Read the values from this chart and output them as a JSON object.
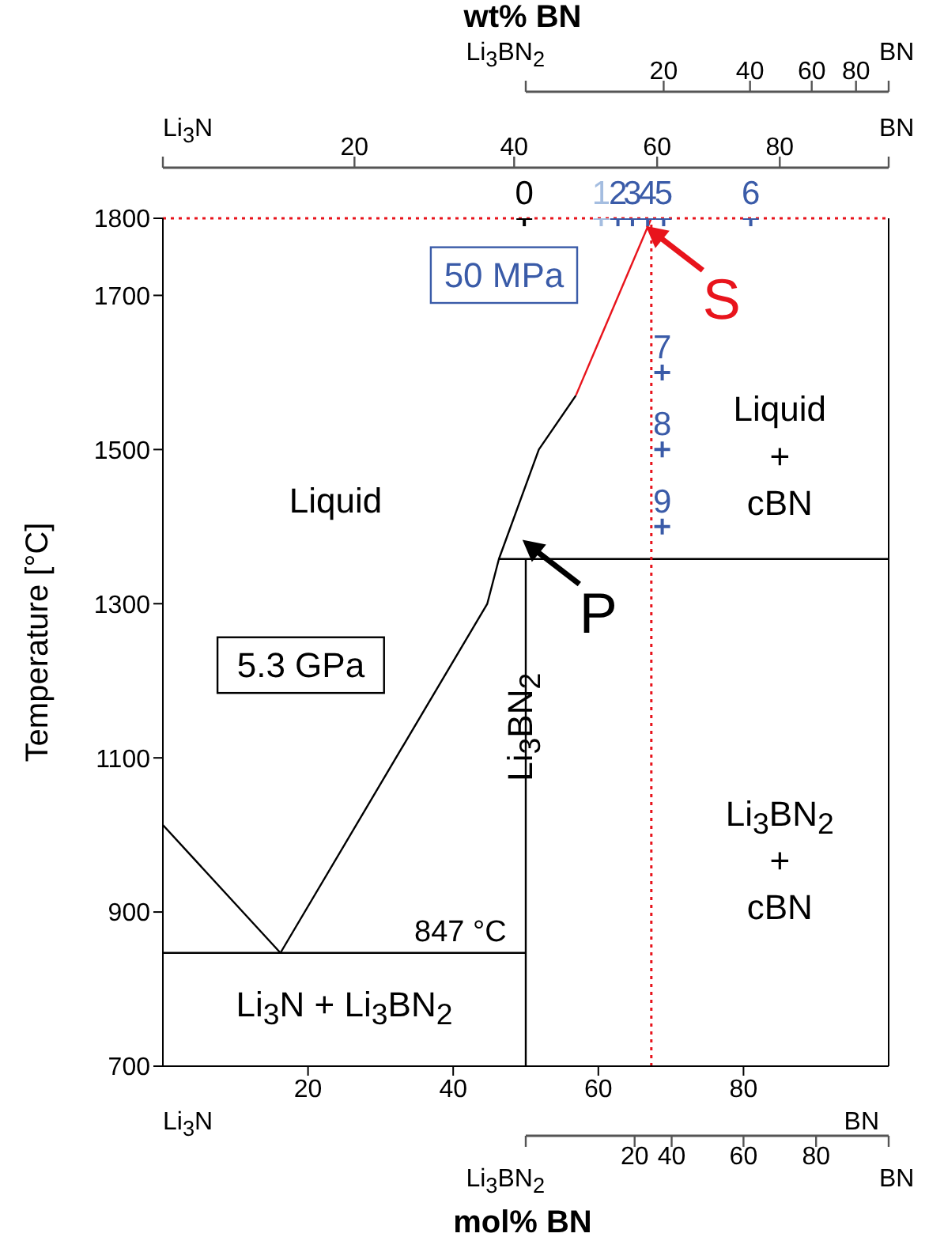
{
  "chart_data": {
    "type": "line",
    "xlabel": "mol% BN",
    "x2label": "wt% BN",
    "ylabel": "Temperature [°C]",
    "xlim": [
      0,
      100
    ],
    "xticks": [
      20,
      40,
      60,
      80
    ],
    "ylim": [
      700,
      1800
    ],
    "yticks": [
      700,
      900,
      1100,
      1300,
      1500,
      1700,
      1800
    ],
    "series": [
      {
        "type": "line",
        "color": "#000000",
        "x": [
          0,
          16.2
        ],
        "values": [
          1013,
          847
        ]
      },
      {
        "type": "line",
        "color": "#000000",
        "x": [
          16.2,
          44.7,
          46.3,
          51.8,
          56.9
        ],
        "values": [
          847,
          1300,
          1358,
          1500,
          1570
        ]
      },
      {
        "type": "line",
        "color": "#e8141c",
        "x": [
          56.9,
          67.3
        ],
        "values": [
          1570,
          1800
        ]
      },
      {
        "type": "line",
        "color": "#000000",
        "x": [
          0,
          50
        ],
        "values": [
          847,
          847
        ]
      },
      {
        "type": "line",
        "color": "#000000",
        "x": [
          50,
          50
        ],
        "values": [
          700,
          1358
        ]
      },
      {
        "type": "line",
        "color": "#000000",
        "x": [
          46.3,
          100
        ],
        "values": [
          1358,
          1358
        ]
      },
      {
        "type": "scatter",
        "marker": "cross",
        "x": [
          49.8,
          60.4,
          62.7,
          64.7,
          66.8,
          69,
          81,
          68.8,
          68.8,
          68.8
        ],
        "values": [
          1800,
          1800,
          1800,
          1800,
          1800,
          1800,
          1800,
          1600,
          1500,
          1400
        ],
        "colors": [
          "#000000",
          "#a4bde0",
          "#3a5ba8",
          "#3a5ba8",
          "#3a5ba8",
          "#3a5ba8",
          "#3a5ba8",
          "#3a5ba8",
          "#3a5ba8",
          "#3a5ba8"
        ]
      }
    ],
    "ref_lines": [
      {
        "axis": "x",
        "value": 67.3,
        "color": "#e8141c",
        "line_style": "dotted"
      },
      {
        "axis": "y",
        "value": 1800,
        "color": "#e8141c",
        "line_style": "dotted"
      }
    ],
    "annotations": [
      "Liquid",
      "Liquid\n+\ncBN",
      "Li$_{3}$BN$_{2}$\n+\ncBN",
      "Li$_{3}$N + Li$_{3}$BN$_{2}$",
      "Li$_{3}$BN$_{2}$",
      "847 °C",
      "5.3 GPa",
      "50 MPa",
      "S",
      "P",
      "Li$_{3}$N",
      "20",
      "40",
      "60",
      "80",
      "BN",
      "Li$_{3}$BN$_{2}$",
      "20",
      "40",
      "60",
      "80",
      "BN",
      "Li$_{3}$N",
      "BN",
      "Li$_{3}$BN$_{2}$",
      "20",
      "40",
      "60",
      "80",
      "BN",
      {
        "text": "0",
        "x": 49.8,
        "y": 1800
      },
      {
        "text": "1",
        "x": 60.4,
        "y": 1800
      },
      {
        "text": "2",
        "x": 62.7,
        "y": 1800
      },
      {
        "text": "3",
        "x": 64.7,
        "y": 1800
      },
      {
        "text": "4",
        "x": 66.8,
        "y": 1800
      },
      {
        "text": "5",
        "x": 69,
        "y": 1800
      },
      {
        "text": "6",
        "x": 81,
        "y": 1800
      },
      {
        "text": "7",
        "x": 68.8,
        "y": 1600
      },
      {
        "text": "8",
        "x": 68.8,
        "y": 1500
      },
      {
        "text": "9",
        "x": 68.8,
        "y": 1400
      }
    ]
  }
}
